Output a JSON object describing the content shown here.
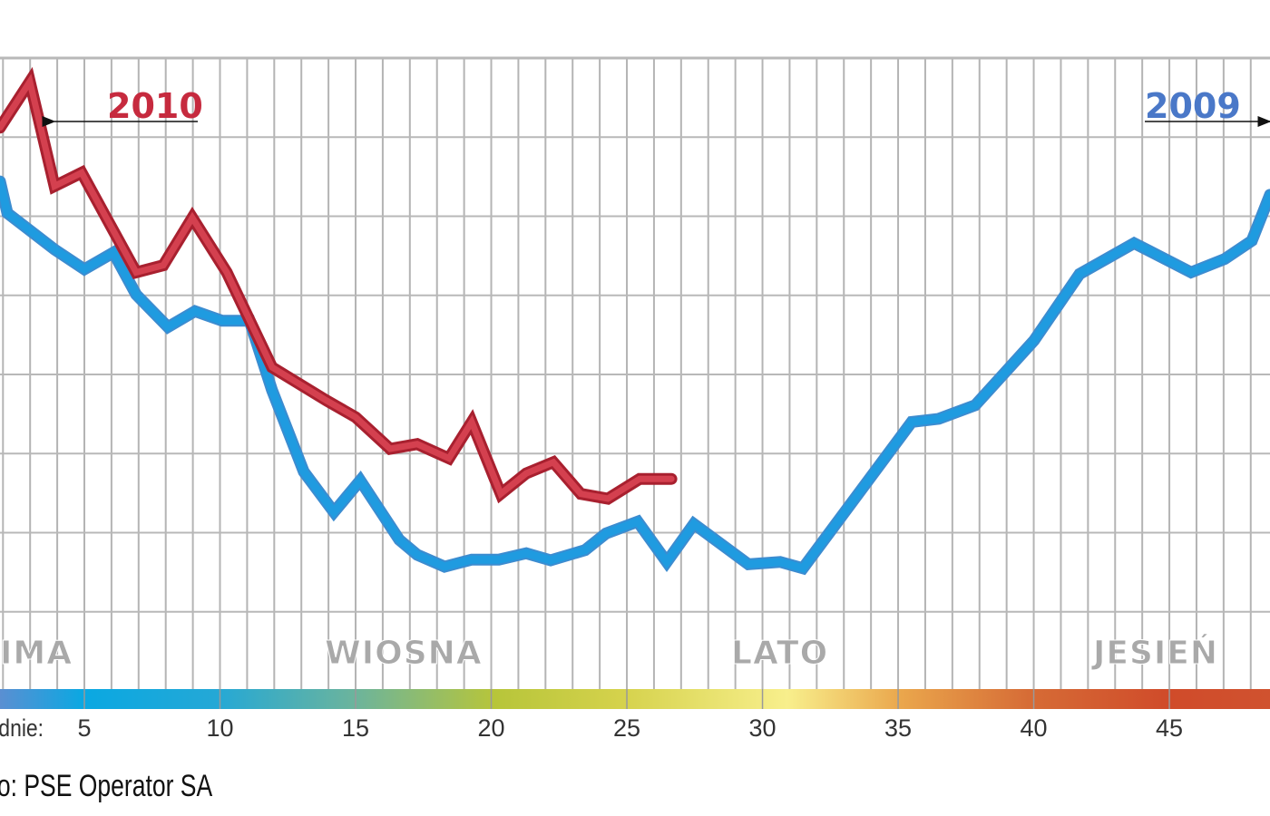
{
  "chart_data": {
    "type": "line",
    "title": "",
    "xlabel": "dnie:",
    "ylabel": "",
    "xlim": [
      1.89,
      48.71
    ],
    "ylim": [
      0,
      8
    ],
    "grid": true,
    "x_ticks": [
      5,
      10,
      15,
      20,
      25,
      30,
      35,
      40,
      45
    ],
    "seasons": [
      "IMA",
      "WIOSNA",
      "LATO",
      "JESIEŃ"
    ],
    "source": "o: PSE Operator SA",
    "series": [
      {
        "name": "2009",
        "color": "#1f9be0",
        "points": [
          [
            1.89,
            6.44
          ],
          [
            2.16,
            6.04
          ],
          [
            3.9,
            5.58
          ],
          [
            5.0,
            5.33
          ],
          [
            6.07,
            5.54
          ],
          [
            6.91,
            5.01
          ],
          [
            8.08,
            4.6
          ],
          [
            9.08,
            4.8
          ],
          [
            10.08,
            4.68
          ],
          [
            11.09,
            4.68
          ],
          [
            11.92,
            3.8
          ],
          [
            13.09,
            2.77
          ],
          [
            14.2,
            2.26
          ],
          [
            15.17,
            2.66
          ],
          [
            16.61,
            1.91
          ],
          [
            17.27,
            1.72
          ],
          [
            18.28,
            1.57
          ],
          [
            19.28,
            1.66
          ],
          [
            20.28,
            1.66
          ],
          [
            21.29,
            1.74
          ],
          [
            22.19,
            1.65
          ],
          [
            23.46,
            1.78
          ],
          [
            24.23,
            1.99
          ],
          [
            25.4,
            2.14
          ],
          [
            26.47,
            1.63
          ],
          [
            27.47,
            2.11
          ],
          [
            29.48,
            1.6
          ],
          [
            30.65,
            1.63
          ],
          [
            31.49,
            1.55
          ],
          [
            35.5,
            3.4
          ],
          [
            36.5,
            3.44
          ],
          [
            37.84,
            3.61
          ],
          [
            40.01,
            4.43
          ],
          [
            41.69,
            5.27
          ],
          [
            43.7,
            5.66
          ],
          [
            45.8,
            5.29
          ],
          [
            47.04,
            5.46
          ],
          [
            48.04,
            5.69
          ],
          [
            48.71,
            6.27
          ]
        ]
      },
      {
        "name": "2010",
        "color": "#c62a3e",
        "points": [
          [
            1.89,
            7.12
          ],
          [
            2.99,
            7.7
          ],
          [
            3.9,
            6.38
          ],
          [
            4.9,
            6.55
          ],
          [
            6.91,
            5.29
          ],
          [
            7.91,
            5.38
          ],
          [
            8.98,
            5.98
          ],
          [
            10.25,
            5.29
          ],
          [
            11.92,
            4.09
          ],
          [
            13.93,
            3.67
          ],
          [
            15.0,
            3.46
          ],
          [
            16.27,
            3.06
          ],
          [
            17.27,
            3.12
          ],
          [
            18.44,
            2.94
          ],
          [
            19.28,
            3.4
          ],
          [
            20.35,
            2.49
          ],
          [
            21.29,
            2.75
          ],
          [
            22.29,
            2.89
          ],
          [
            23.3,
            2.49
          ],
          [
            24.3,
            2.43
          ],
          [
            25.47,
            2.68
          ],
          [
            26.64,
            2.68
          ]
        ]
      }
    ]
  },
  "labels": {
    "year_2010": "2010",
    "year_2009": "2009",
    "season_winter": "IMA",
    "season_spring": "WIOSNA",
    "season_summer": "LATO",
    "season_autumn": "JESIEŃ",
    "axis_prefix": "dnie:",
    "source": "o: PSE Operator SA"
  }
}
